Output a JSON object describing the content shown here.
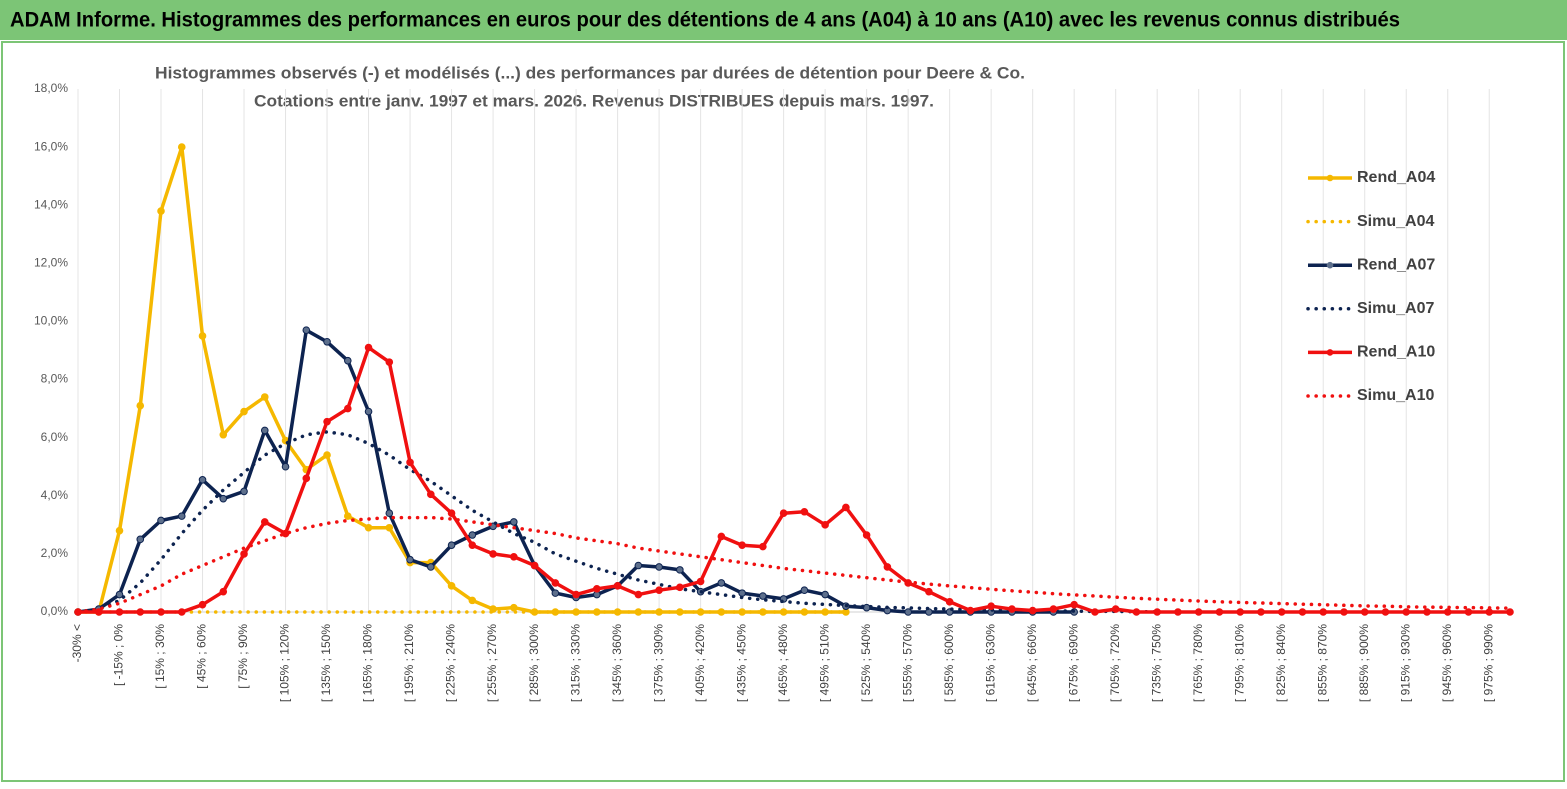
{
  "header": {
    "title": "ADAM Informe. Histogrammes des performances en euros pour des détentions de 4 ans (A04) à 10 ans (A10) avec les revenus connus distribués"
  },
  "chart_data": {
    "type": "line",
    "title": "Histogrammes observés (-) et modélisés (...) des performances par durées de détention pour Deere & Co.",
    "subtitle": "Cotations entre janv. 1997 et mars. 2026.  Revenus DISTRIBUES depuis mars. 1997.",
    "categories": [
      "-30% <",
      null,
      "[ -15% ; 0%",
      null,
      "[ 15% ; 30%",
      null,
      "[ 45% ; 60%",
      null,
      "[ 75% ; 90%",
      null,
      "[ 105% ; 120%",
      null,
      "[ 135% ; 150%",
      null,
      "[ 165% ; 180%",
      null,
      "[ 195% ; 210%",
      null,
      "[ 225% ; 240%",
      null,
      "[ 255% ; 270%",
      null,
      "[ 285% ; 300%",
      null,
      "[ 315% ; 330%",
      null,
      "[ 345% ; 360%",
      null,
      "[ 375% ; 390%",
      null,
      "[ 405% ; 420%",
      null,
      "[ 435% ; 450%",
      null,
      "[ 465% ; 480%",
      null,
      "[ 495% ; 510%",
      null,
      "[ 525% ; 540%",
      null,
      "[ 555% ; 570%",
      null,
      "[ 585% ; 600%",
      null,
      "[ 615% ; 630%",
      null,
      "[ 645% ; 660%",
      null,
      "[ 675% ; 690%",
      null,
      "[ 705% ; 720%",
      null,
      "[ 735% ; 750%",
      null,
      "[ 765% ; 780%",
      null,
      "[ 795% ; 810%",
      null,
      "[ 825% ; 840%",
      null,
      "[ 855% ; 870%",
      null,
      "[ 885% ; 900%",
      null,
      "[ 915% ; 930%",
      null,
      "[ 945% ; 960%",
      null,
      "[ 975% ; 990%",
      null
    ],
    "series": [
      {
        "name": "Rend_A04",
        "color": "#f5b800",
        "dotted": false,
        "marker": true,
        "values": [
          0,
          0,
          2.8,
          7.1,
          13.8,
          16.0,
          9.5,
          6.1,
          6.9,
          7.4,
          5.9,
          4.9,
          5.4,
          3.3,
          2.9,
          2.9,
          1.7,
          1.7,
          0.9,
          0.4,
          0.1,
          0.15,
          0,
          0,
          0,
          0,
          0,
          0,
          0,
          0,
          0,
          0,
          0,
          0,
          0,
          0,
          0,
          0,
          null,
          null,
          null,
          null,
          null,
          null,
          null,
          null,
          null,
          null,
          null,
          null,
          null,
          null,
          null,
          null,
          null,
          null,
          null,
          null,
          null,
          null,
          null,
          null,
          null,
          null,
          null,
          null,
          null,
          null,
          null,
          null
        ]
      },
      {
        "name": "Simu_A04",
        "color": "#f5b800",
        "dotted": true,
        "marker": false,
        "values": [
          0,
          0,
          0,
          0,
          0,
          0,
          0,
          0,
          0,
          0,
          0,
          0,
          0,
          0,
          0,
          0,
          0,
          0,
          0,
          0,
          0,
          0,
          0,
          0,
          0,
          0,
          0,
          0,
          0,
          0,
          0,
          0,
          0,
          0,
          0,
          0,
          0,
          0,
          null,
          null,
          null,
          null,
          null,
          null,
          null,
          null,
          null,
          null,
          null,
          null,
          null,
          null,
          null,
          null,
          null,
          null,
          null,
          null,
          null,
          null,
          null,
          null,
          null,
          null,
          null,
          null,
          null,
          null,
          null,
          null
        ]
      },
      {
        "name": "Rend_A07",
        "color": "#0d2350",
        "dotted": false,
        "marker": true,
        "values": [
          0,
          0.1,
          0.6,
          2.5,
          3.15,
          3.3,
          4.55,
          3.9,
          4.15,
          6.25,
          5.0,
          9.7,
          9.3,
          8.65,
          6.9,
          3.4,
          1.8,
          1.55,
          2.3,
          2.65,
          2.95,
          3.1,
          1.6,
          0.65,
          0.5,
          0.6,
          0.9,
          1.6,
          1.55,
          1.45,
          0.7,
          1.0,
          0.65,
          0.55,
          0.45,
          0.75,
          0.6,
          0.2,
          0.15,
          0.05,
          0,
          0,
          0,
          0,
          0,
          0,
          0,
          0,
          0,
          null,
          null,
          null,
          null,
          null,
          null,
          null,
          null,
          null,
          null,
          null,
          null,
          null,
          null,
          null,
          null,
          null,
          null,
          null,
          null,
          null
        ]
      },
      {
        "name": "Simu_A07",
        "color": "#0d2350",
        "dotted": true,
        "marker": false,
        "values": [
          0,
          0.1,
          0.4,
          1.0,
          1.8,
          2.7,
          3.5,
          4.2,
          4.8,
          5.4,
          5.8,
          6.1,
          6.2,
          6.1,
          5.8,
          5.4,
          4.9,
          4.5,
          4.0,
          3.5,
          3.1,
          2.7,
          2.4,
          2.0,
          1.75,
          1.5,
          1.3,
          1.1,
          0.95,
          0.8,
          0.7,
          0.6,
          0.5,
          0.42,
          0.36,
          0.3,
          0.26,
          0.22,
          0.19,
          0.16,
          0.14,
          0.12,
          0.1,
          0.08,
          0.07,
          0.06,
          0.05,
          0.04,
          0.03,
          0.02,
          0.02,
          0.01,
          0.01,
          null,
          null,
          null,
          null,
          null,
          null,
          null,
          null,
          null,
          null,
          null,
          null,
          null,
          null,
          null,
          null,
          null
        ]
      },
      {
        "name": "Rend_A10",
        "color": "#f01010",
        "dotted": false,
        "marker": true,
        "values": [
          0,
          0,
          0,
          0,
          0,
          0,
          0.25,
          0.7,
          2.0,
          3.1,
          2.7,
          4.6,
          6.55,
          7.0,
          9.1,
          8.6,
          5.15,
          4.05,
          3.4,
          2.3,
          2.0,
          1.9,
          1.6,
          1.0,
          0.6,
          0.8,
          0.9,
          0.6,
          0.75,
          0.85,
          1.05,
          2.6,
          2.3,
          2.25,
          3.4,
          3.45,
          3.0,
          3.6,
          2.65,
          1.55,
          1.0,
          0.7,
          0.35,
          0.05,
          0.2,
          0.1,
          0.05,
          0.1,
          0.25,
          0,
          0.1,
          0,
          0,
          0,
          0,
          0,
          0,
          0,
          0,
          0,
          0,
          0,
          0,
          0,
          0,
          0,
          0,
          0,
          0,
          0
        ]
      },
      {
        "name": "Simu_A10",
        "color": "#f01010",
        "dotted": true,
        "marker": false,
        "values": [
          0,
          0.1,
          0.3,
          0.6,
          0.9,
          1.3,
          1.6,
          1.9,
          2.2,
          2.45,
          2.7,
          2.9,
          3.05,
          3.15,
          3.2,
          3.25,
          3.25,
          3.25,
          3.2,
          3.1,
          3.0,
          2.9,
          2.8,
          2.7,
          2.55,
          2.45,
          2.35,
          2.2,
          2.1,
          2.0,
          1.9,
          1.8,
          1.7,
          1.6,
          1.5,
          1.42,
          1.34,
          1.26,
          1.18,
          1.1,
          1.03,
          0.96,
          0.9,
          0.84,
          0.78,
          0.73,
          0.68,
          0.63,
          0.59,
          0.55,
          0.51,
          0.47,
          0.44,
          0.41,
          0.38,
          0.35,
          0.33,
          0.31,
          0.29,
          0.27,
          0.25,
          0.23,
          0.21,
          0.2,
          0.18,
          0.17,
          0.16,
          0.15,
          0.14,
          0.13
        ]
      }
    ],
    "ylim": [
      0,
      18
    ],
    "yticks": [
      {
        "value": 0,
        "label": "0,0%"
      },
      {
        "value": 2,
        "label": "2,0%"
      },
      {
        "value": 4,
        "label": "4,0%"
      },
      {
        "value": 6,
        "label": "6,0%"
      },
      {
        "value": 8,
        "label": "8,0%"
      },
      {
        "value": 10,
        "label": "10,0%"
      },
      {
        "value": 12,
        "label": "12,0%"
      },
      {
        "value": 14,
        "label": "14,0%"
      },
      {
        "value": 16,
        "label": "16,0%"
      },
      {
        "value": 18,
        "label": "18,0%"
      }
    ],
    "grid": true,
    "legend": "right"
  }
}
